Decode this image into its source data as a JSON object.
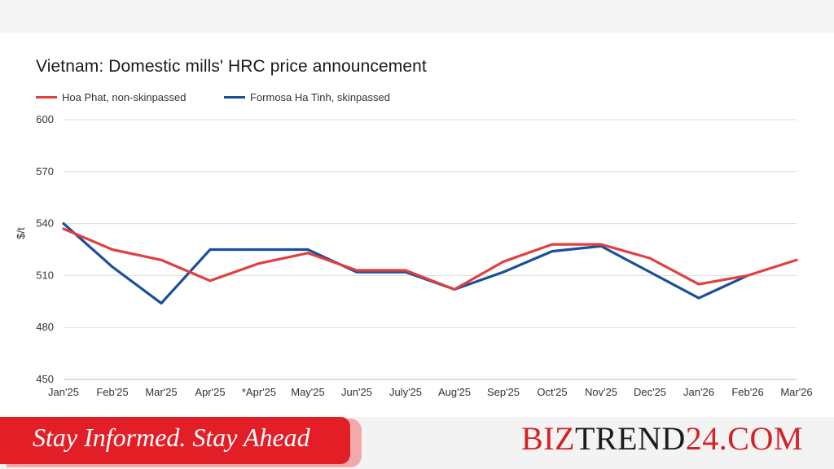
{
  "chart_data": {
    "type": "line",
    "title": "Vietnam: Domestic mills' HRC price announcement",
    "ylabel": "$/t",
    "xlabel": "",
    "categories": [
      "Jan'25",
      "Feb'25",
      "Mar'25",
      "Apr'25",
      "*Apr'25",
      "May'25",
      "Jun'25",
      "July'25",
      "Aug'25",
      "Sep'25",
      "Oct'25",
      "Nov'25",
      "Dec'25",
      "Jan'26",
      "Feb'26",
      "Mar'26"
    ],
    "ylim": [
      450,
      600
    ],
    "yticks": [
      450,
      480,
      510,
      540,
      570,
      600
    ],
    "grid": true,
    "legend_position": "top-left",
    "series": [
      {
        "name": "Hoa Phat, non-skinpassed",
        "color": "#e0403f",
        "values": [
          537,
          525,
          519,
          507,
          517,
          523,
          513,
          513,
          502,
          518,
          528,
          528,
          520,
          505,
          510,
          519
        ]
      },
      {
        "name": "Formosa Ha Tinh, skinpassed",
        "color": "#1a4f9c",
        "values": [
          540,
          515,
          494,
          525,
          525,
          525,
          512,
          512,
          502,
          512,
          524,
          527,
          512,
          497,
          510,
          null
        ]
      }
    ]
  },
  "footer": {
    "tagline": "Stay Informed. Stay Ahead",
    "brand_part1": "BIZ",
    "brand_part2": "TREND",
    "brand_part3": "24",
    "brand_part4": ".COM"
  }
}
